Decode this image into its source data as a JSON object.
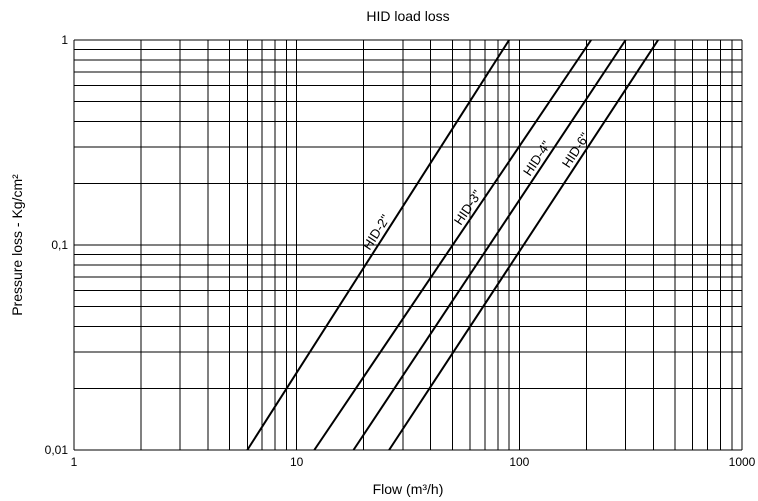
{
  "chart_data": {
    "type": "line",
    "title": "HID load loss",
    "xlabel": "Flow (m³/h)",
    "ylabel": "Pressure loss - Kg/cm²",
    "xscale": "log",
    "yscale": "log",
    "xlim": [
      1,
      1000
    ],
    "ylim": [
      0.01,
      1
    ],
    "xticks": [
      {
        "value": 1,
        "label": "1"
      },
      {
        "value": 10,
        "label": "10"
      },
      {
        "value": 100,
        "label": "100"
      },
      {
        "value": 1000,
        "label": "1000"
      }
    ],
    "yticks": [
      {
        "value": 0.01,
        "label": "0,01"
      },
      {
        "value": 0.1,
        "label": "0,1"
      },
      {
        "value": 1,
        "label": "1"
      }
    ],
    "grid": true,
    "legend": "none",
    "series": [
      {
        "name": "HID-2\"",
        "x": [
          6,
          90
        ],
        "y": [
          0.01,
          1
        ]
      },
      {
        "name": "HID-3\"",
        "x": [
          12,
          210
        ],
        "y": [
          0.01,
          1
        ]
      },
      {
        "name": "HID-4\"",
        "x": [
          18,
          300
        ],
        "y": [
          0.01,
          1
        ]
      },
      {
        "name": "HID-6\"",
        "x": [
          26,
          420
        ],
        "y": [
          0.01,
          1
        ]
      }
    ]
  }
}
